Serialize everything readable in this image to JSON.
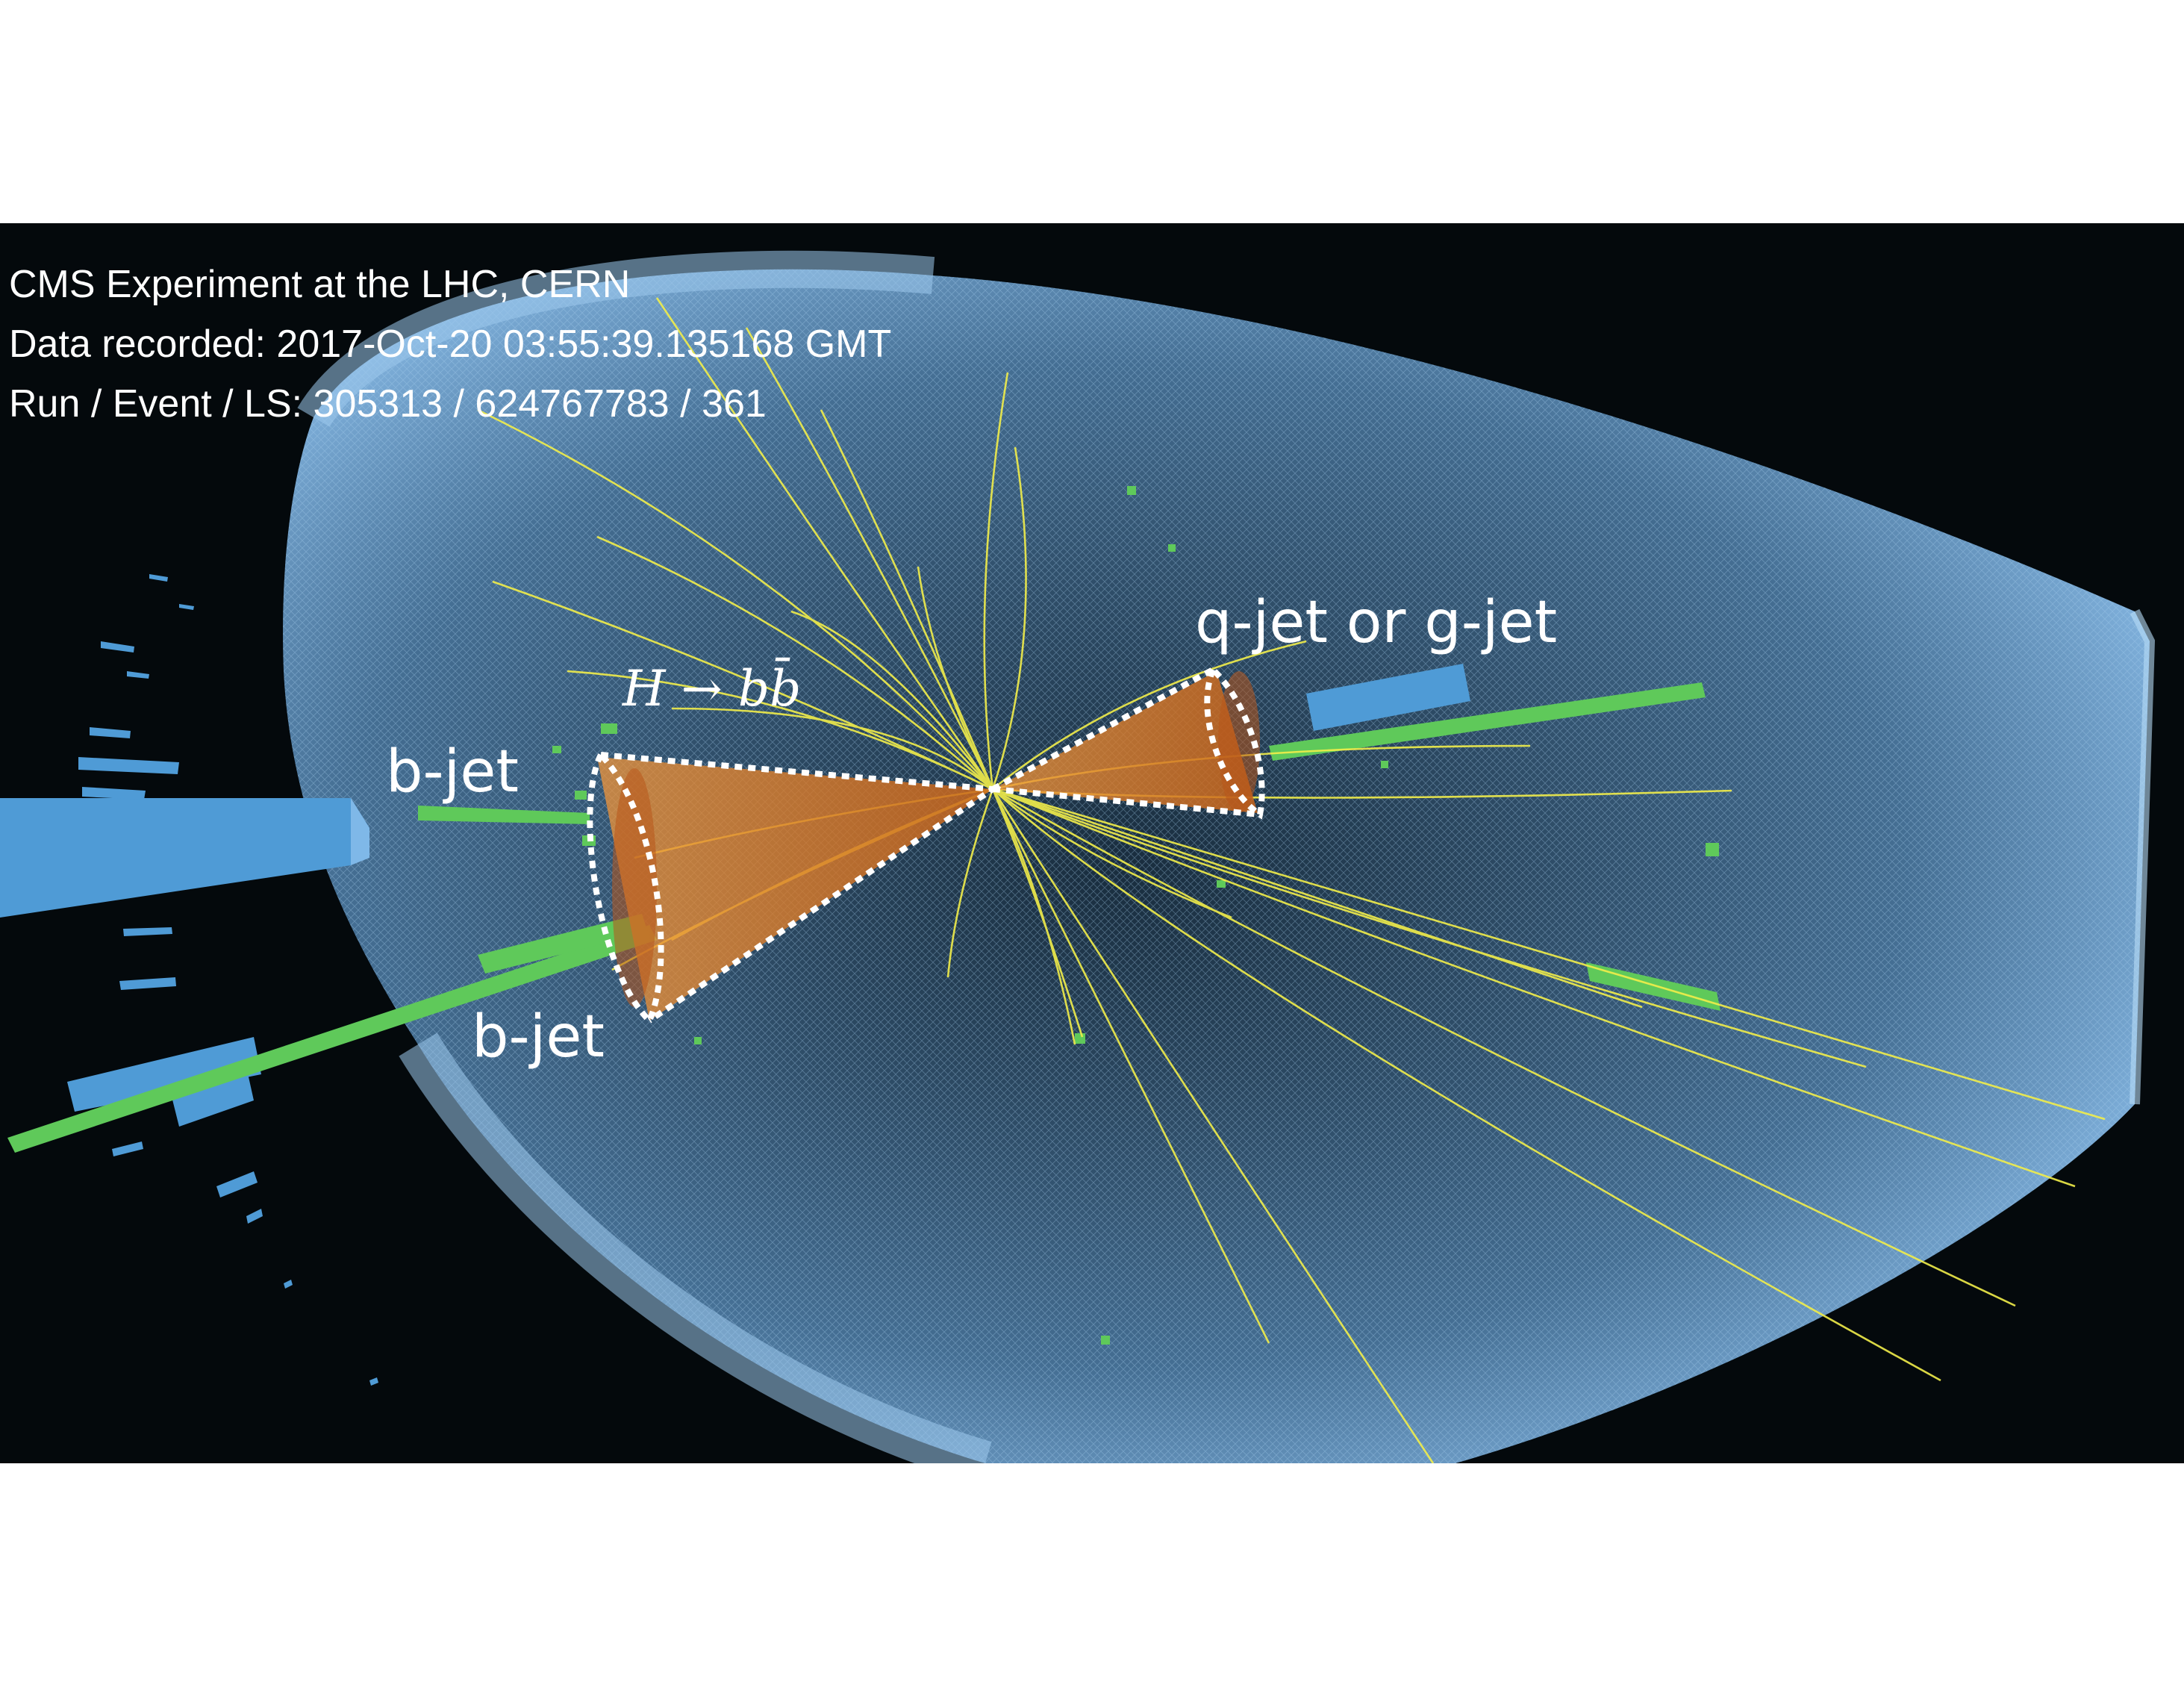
{
  "info": {
    "line1": "CMS Experiment at the LHC, CERN",
    "line2": "Data recorded: 2017-Oct-20 03:55:39.135168 GMT",
    "line3": "Run / Event / LS: 305313 / 624767783 / 361"
  },
  "labels": {
    "q_jet": "q-jet or g-jet",
    "b_jet_upper": "b-jet",
    "b_jet_lower": "b-jet",
    "higgs_decay": "H → bb̄"
  },
  "colors": {
    "background": "#04090c",
    "calorimeter_blue": "#7fb6e6",
    "hcal_bar_blue": "#4f9bd6",
    "ecal_green": "#5fc95a",
    "track_yellow": "#f2ee4a",
    "cone_orange": "#e8832a",
    "annotation_white": "#ffffff"
  }
}
